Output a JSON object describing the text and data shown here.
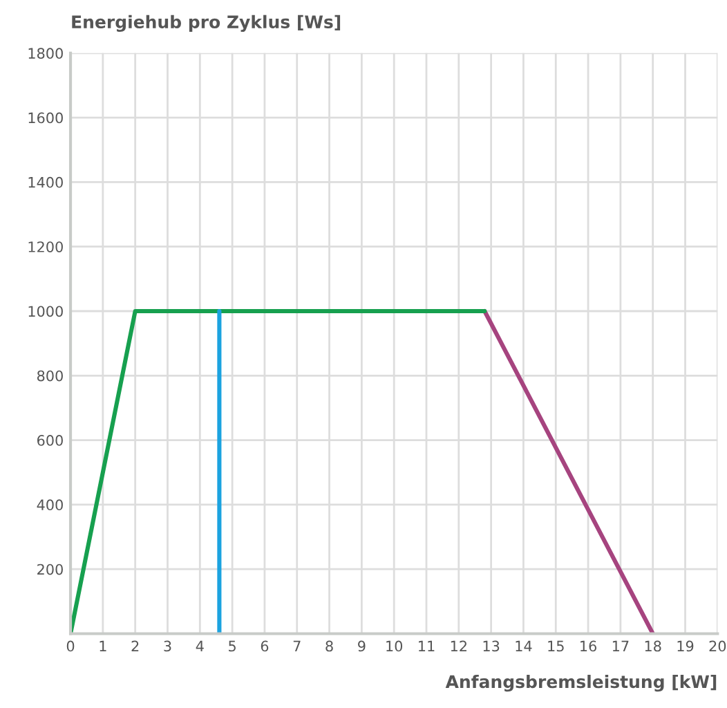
{
  "chart_data": {
    "type": "line",
    "xlabel": "Anfangsbremsleistung [kW]",
    "ylabel": "Energiehub pro Zyklus [Ws]",
    "series": [
      {
        "color": "#a6447f",
        "x": [
          12.8,
          18
        ],
        "values": [
          1000,
          0
        ]
      },
      {
        "color": "#17a04f",
        "x": [
          0,
          2,
          12.8
        ],
        "values": [
          0,
          1000,
          1000
        ]
      },
      {
        "color": "#1ba3e0",
        "x": [
          4.6,
          4.6
        ],
        "values": [
          0,
          1000
        ]
      }
    ],
    "xlim": [
      0,
      20
    ],
    "xticks": [
      0,
      1,
      2,
      3,
      4,
      5,
      6,
      7,
      8,
      9,
      10,
      11,
      12,
      13,
      14,
      15,
      16,
      17,
      18,
      19,
      20
    ],
    "ylim": [
      0,
      1800
    ],
    "yticks": [
      200,
      400,
      600,
      800,
      1000,
      1200,
      1400,
      1600,
      1800
    ],
    "grid": true,
    "legend": false,
    "marker": "none",
    "line_style": "solid"
  }
}
